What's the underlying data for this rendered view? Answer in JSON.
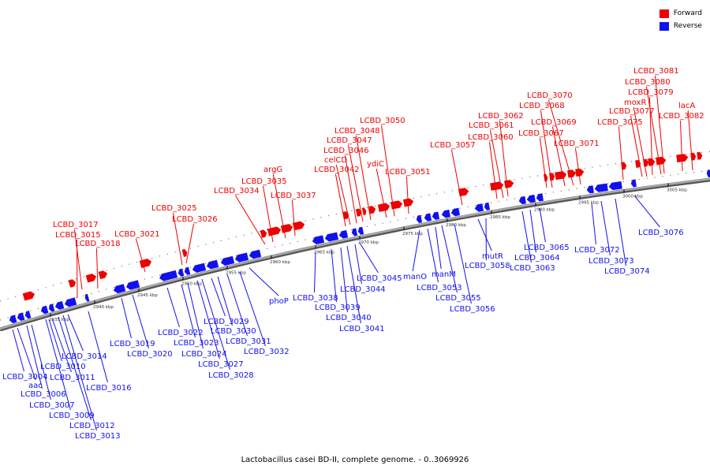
{
  "colors": {
    "forward": "#ee0000",
    "reverse": "#1111ee",
    "backbone": "#888888"
  },
  "legend": {
    "forward_label": "Forward",
    "reverse_label": "Reverse"
  },
  "caption": "Lactobacillus casei BD-II, complete genome. - 0..3069926",
  "scale": [
    {
      "label": "2935 kbp"
    },
    {
      "label": "2940 kbp"
    },
    {
      "label": "2945 kbp"
    },
    {
      "label": "2950 kbp"
    },
    {
      "label": "2955 kbp"
    },
    {
      "label": "2960 kbp"
    },
    {
      "label": "2965 kbp"
    },
    {
      "label": "2970 kbp"
    },
    {
      "label": "2975 kbp"
    },
    {
      "label": "2980 kbp"
    },
    {
      "label": "2985 kbp"
    },
    {
      "label": "2990 kbp"
    },
    {
      "label": "2995 kbp"
    },
    {
      "label": "3000 kbp"
    },
    {
      "label": "3005 kbp"
    }
  ],
  "forward_genes": [
    "LCBD_3015",
    "LCBD_3017",
    "LCBD_3018",
    "LCBD_3021",
    "LCBD_3025",
    "LCBD_3026",
    "LCBD_3034",
    "LCBD_3035",
    "argG",
    "LCBD_3037",
    "LCBD_3042",
    "celCD",
    "LCBD_3046",
    "LCBD_3047",
    "LCBD_3048",
    "ydiC",
    "LCBD_3050",
    "LCBD_3051",
    "LCBD_3057",
    "LCBD_3060",
    "LCBD_3061",
    "LCBD_3062",
    "LCBD_3067",
    "LCBD_3068",
    "LCBD_3069",
    "LCBD_3070",
    "LCBD_3071",
    "LCBD_3075",
    "LCBD_3077",
    "moxR",
    "LCBD_3079",
    "LCBD_3080",
    "LCBD_3081",
    "LCBD_3082",
    "lacA"
  ],
  "reverse_genes": [
    "LCBD_3004",
    "aac",
    "LCBD_3006",
    "LCBD_3007",
    "LCBD_3009",
    "LCBD_3010",
    "LCBD_3011",
    "LCBD_3012",
    "LCBD_3013",
    "LCBD_3014",
    "LCBD_3016",
    "LCBD_3019",
    "LCBD_3020",
    "LCBD_3022",
    "LCBD_3023",
    "LCBD_3024",
    "LCBD_3027",
    "LCBD_3028",
    "LCBD_3029",
    "LCBD_3030",
    "LCBD_3031",
    "LCBD_3032",
    "phoP",
    "LCBD_3038",
    "LCBD_3039",
    "LCBD_3040",
    "LCBD_3041",
    "LCBD_3044",
    "LCBD_3045",
    "manO",
    "LCBD_3053",
    "manM",
    "LCBD_3055",
    "LCBD_3056",
    "mutR",
    "LCBD_3058",
    "LCBD_3063",
    "LCBD_3064",
    "LCBD_3065",
    "LCBD_3072",
    "LCBD_3073",
    "LCBD_3074",
    "LCBD_3076"
  ]
}
